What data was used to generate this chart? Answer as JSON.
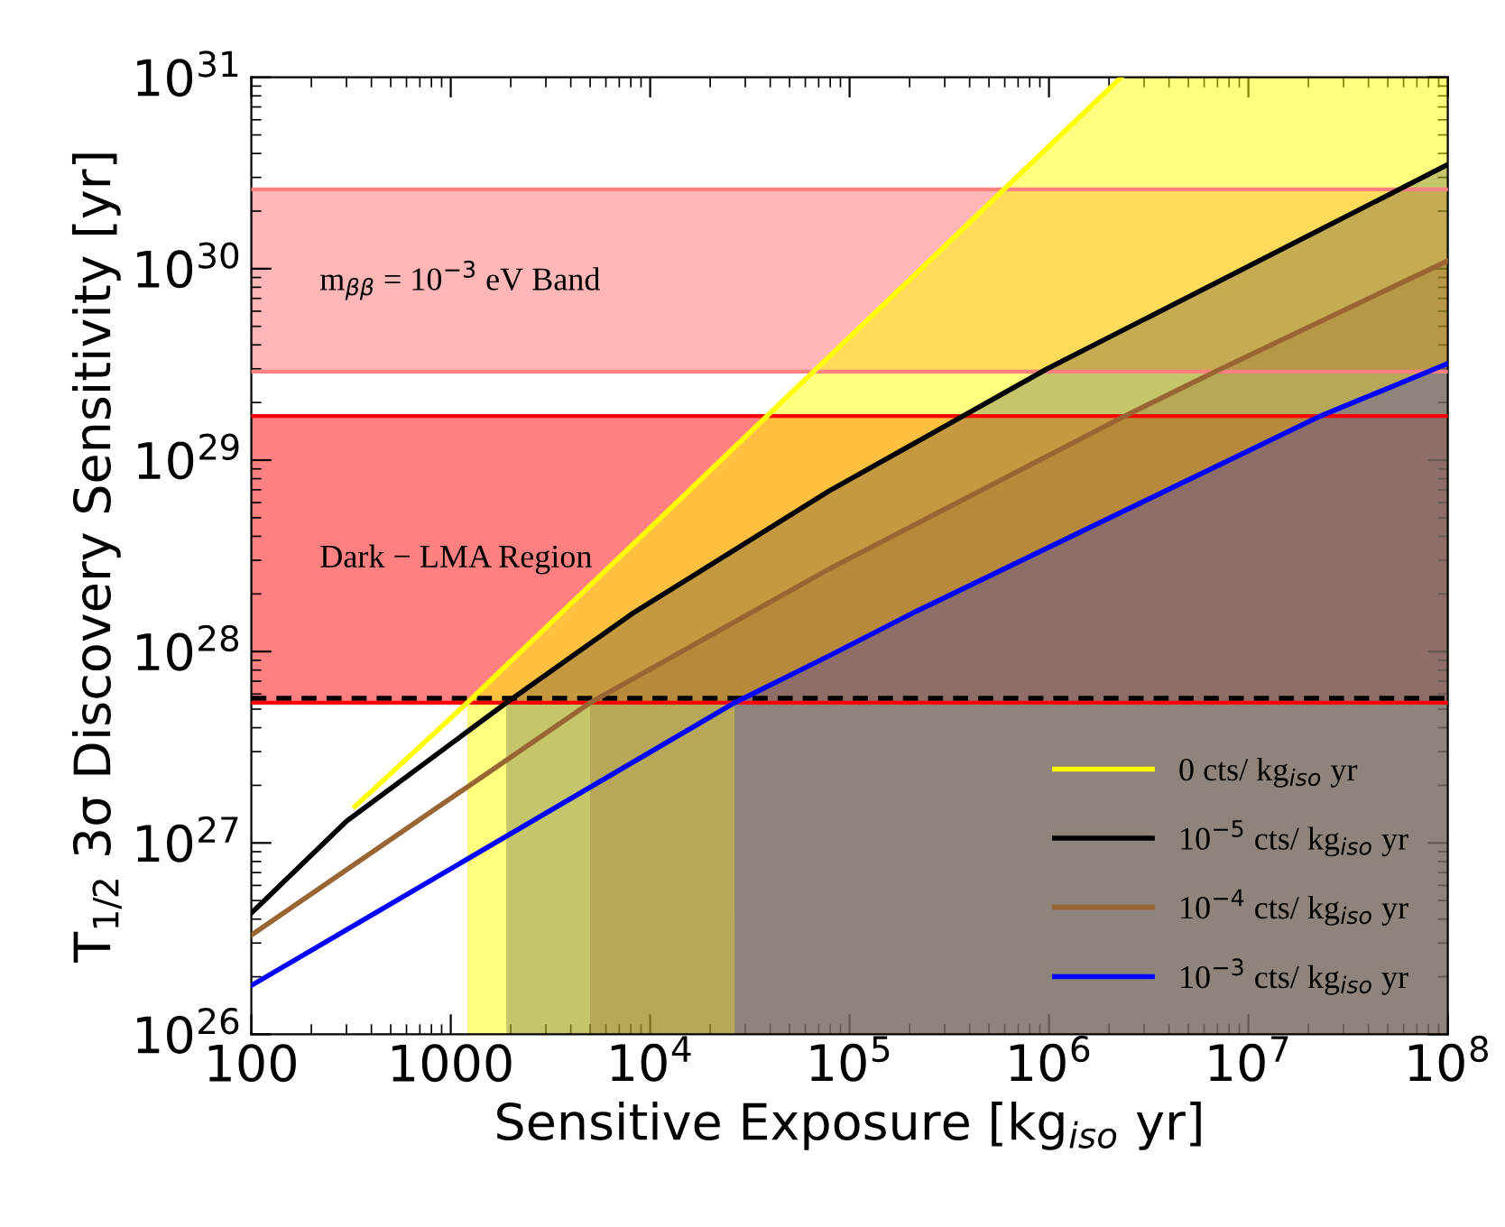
{
  "chart_data": {
    "type": "line",
    "xlabel": "Sensitive Exposure [kg$_{iso}$ yr]",
    "ylabel": "T$_{1/2}$ 3σ Discovery Sensitivity [yr]",
    "log": "xy",
    "xlim": [
      100,
      100000000.0
    ],
    "ylim": [
      1e+26,
      1e+31
    ],
    "xticks": [
      100,
      1000,
      {
        "value": 10000.0,
        "label": "10$^{4}$"
      },
      {
        "value": 100000.0,
        "label": "10$^{5}$"
      },
      {
        "value": 1000000.0,
        "label": "10$^{6}$"
      },
      {
        "value": 10000000.0,
        "label": "10$^{7}$"
      },
      {
        "value": 100000000.0,
        "label": "10$^{8}$"
      }
    ],
    "yticks": [
      {
        "value": 1e+26,
        "label": "10$^{26}$"
      },
      {
        "value": 1e+27,
        "label": "10$^{27}$"
      },
      {
        "value": 1e+28,
        "label": "10$^{28}$"
      },
      {
        "value": 1e+29,
        "label": "10$^{29}$"
      },
      {
        "value": 1e+30,
        "label": "10$^{30}$"
      },
      {
        "value": 1e+31,
        "label": "10$^{31}$"
      }
    ],
    "bands": [
      {
        "axis": "y",
        "from": 2.9e+29,
        "to": 2.6e+30,
        "label": "m$_{ββ}$ = 10$^{−3}$ eV Band",
        "color": "#ffb6b6"
      },
      {
        "axis": "y",
        "from": 5.4e+27,
        "to": 1.7e+29,
        "label": "Dark − LMA Region",
        "color": "#ff8080"
      }
    ],
    "ref_lines": [
      {
        "axis": "y",
        "value": 5.7e+27,
        "color": "#000000",
        "line_style": "dashed"
      },
      {
        "axis": "y",
        "value": 2.9e+29,
        "color": "#ff8080",
        "line_style": "solid"
      },
      {
        "axis": "y",
        "value": 2.6e+30,
        "color": "#ff8080",
        "line_style": "solid"
      },
      {
        "axis": "y",
        "value": 5.4e+27,
        "color": "#ff0000",
        "line_style": "solid"
      },
      {
        "axis": "y",
        "value": 1.7e+29,
        "color": "#ff0000",
        "line_style": "solid"
      }
    ],
    "series": [
      {
        "type": "area",
        "color": "#ffff00",
        "x": [
          1210,
          2300000.0,
          100000000.0
        ],
        "values": [
          5.4e+27,
          1e+31,
          1e+31
        ]
      },
      {
        "type": "area",
        "color": "#404040",
        "x": [
          1900,
          8300,
          79000,
          980000,
          100000000.0
        ],
        "values": [
          5.4e+27,
          1.6e+28,
          6.9e+28,
          3e+29,
          3.5e+30
        ]
      },
      {
        "type": "area",
        "color": "#996633",
        "x": [
          5000,
          79000,
          2400000.0,
          6800000.0,
          100000000.0
        ],
        "values": [
          5.4e+27,
          2.7e+28,
          1.7e+29,
          2.9e+29,
          1.1e+30
        ]
      },
      {
        "type": "area",
        "color": "#3333cc",
        "x": [
          26500,
          79000,
          210000.0,
          23000000.0,
          100000000.0
        ],
        "values": [
          5.4e+27,
          9.5e+27,
          1.6e+28,
          1.7e+29,
          3.2e+29
        ]
      },
      {
        "name": "0 cts/ kg$_{iso}$ yr",
        "color": "#ffff00",
        "x": [
          331,
          1210,
          2300000.0
        ],
        "values": [
          1.55e+27,
          5.4e+27,
          1e+31
        ]
      },
      {
        "name": "10$^{−5}$ cts/ kg$_{iso}$ yr",
        "color": "#000000",
        "x": [
          100,
          300,
          1900,
          8300,
          79000,
          980000,
          100000000.0
        ],
        "values": [
          4.3e+26,
          1.3e+27,
          5.4e+27,
          1.6e+28,
          6.9e+28,
          3e+29,
          3.5e+30
        ]
      },
      {
        "name": "10$^{−4}$ cts/ kg$_{iso}$ yr",
        "color": "#996633",
        "x": [
          100,
          5000,
          79000,
          2400000.0,
          6800000.0,
          100000000.0
        ],
        "values": [
          3.3e+26,
          5.4e+27,
          2.7e+28,
          1.7e+29,
          2.9e+29,
          1.1e+30
        ]
      },
      {
        "name": "10$^{−3}$ cts/ kg$_{iso}$ yr",
        "color": "#0000ff",
        "x": [
          100,
          26500,
          79000,
          210000.0,
          23000000.0,
          100000000.0
        ],
        "values": [
          1.8e+26,
          5.4e+27,
          9.5e+27,
          1.6e+28,
          1.7e+29,
          3.2e+29
        ]
      }
    ],
    "legend": "bottom right"
  }
}
